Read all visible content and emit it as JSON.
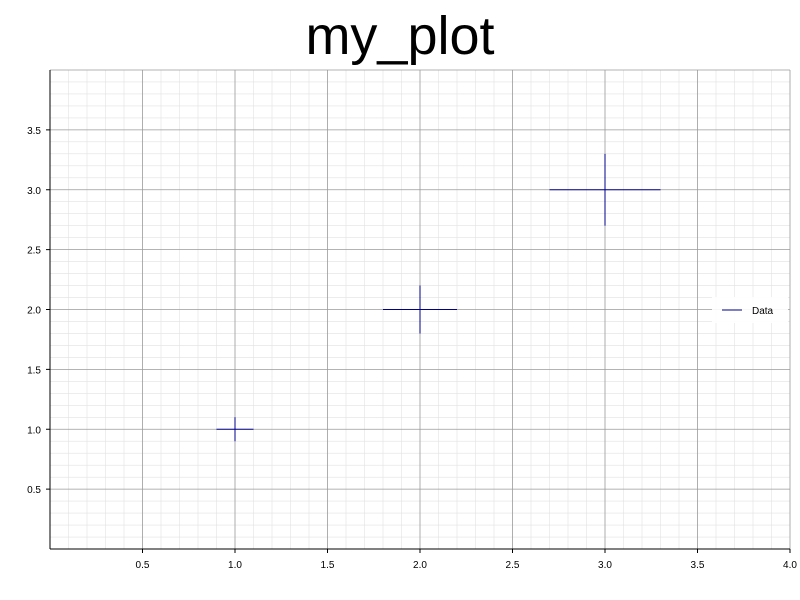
{
  "chart_data": {
    "type": "scatter",
    "title": "my_plot",
    "xlabel": "",
    "ylabel": "",
    "xlim": [
      0,
      4.0
    ],
    "ylim": [
      0,
      4.0
    ],
    "xticks": [
      0.5,
      1.0,
      1.5,
      2.0,
      2.5,
      3.0,
      3.5,
      4.0
    ],
    "yticks": [
      0.5,
      1.0,
      1.5,
      2.0,
      2.5,
      3.0,
      3.5
    ],
    "xtick_labels": [
      "0.5",
      "1.0",
      "1.5",
      "2.0",
      "2.5",
      "3.0",
      "3.5",
      "4.0"
    ],
    "ytick_labels": [
      "0.5",
      "1.0",
      "1.5",
      "2.0",
      "2.5",
      "3.0",
      "3.5"
    ],
    "grid": true,
    "legend_position": "right",
    "series": [
      {
        "name": "Data",
        "color": "#00008b",
        "points": [
          {
            "x": 1.0,
            "y": 1.0,
            "xerr": 0.1,
            "yerr": 0.1
          },
          {
            "x": 2.0,
            "y": 2.0,
            "xerr": 0.2,
            "yerr": 0.2
          },
          {
            "x": 3.0,
            "y": 3.0,
            "xerr": 0.3,
            "yerr": 0.3
          }
        ]
      }
    ]
  }
}
